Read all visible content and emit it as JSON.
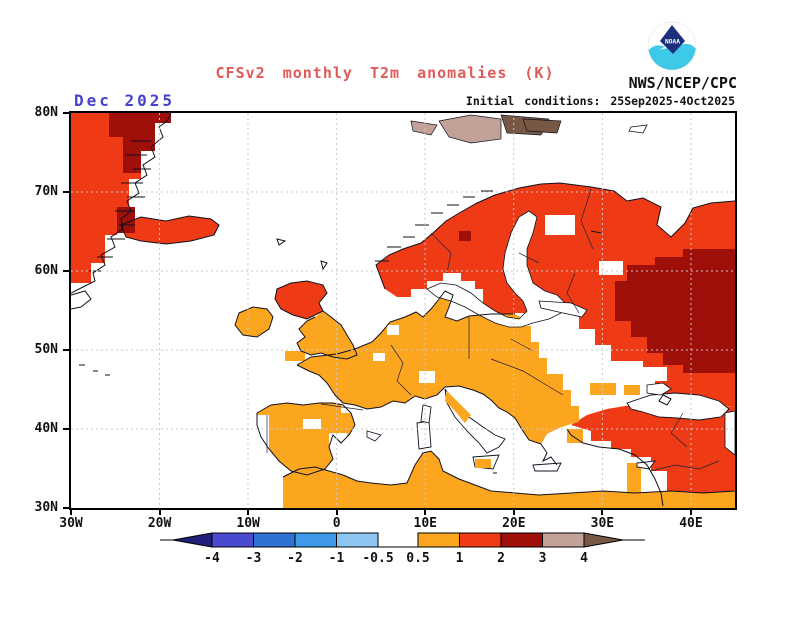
{
  "header": {
    "title": "CFSv2 monthly T2m anomalies (K)",
    "org": "NWS/NCEP/CPC",
    "init_conditions": "Initial conditions: 25Sep2025-4Oct2025",
    "date_label": "Dec 2025",
    "logo_text": "NOAA"
  },
  "colors": {
    "title": "#e05a5a",
    "date_label": "#4343cf",
    "noaa_navy": "#1b2f7e",
    "noaa_cyan": "#3fc9e9",
    "gridline": "#c8c8c8",
    "coastline": "#10101f"
  },
  "map": {
    "lat_ticks": [
      "80N",
      "70N",
      "60N",
      "50N",
      "40N",
      "30N"
    ],
    "lon_ticks": [
      "30W",
      "20W",
      "10W",
      "0",
      "10E",
      "20E",
      "30E",
      "40E"
    ]
  },
  "legend": {
    "tick_labels": [
      "-4",
      "-3",
      "-2",
      "-1",
      "-0.5",
      "0.5",
      "1",
      "2",
      "3",
      "4"
    ],
    "bins": [
      {
        "id": "lt4",
        "range": "< -4",
        "color": "#20207c",
        "shape": "arrow-left"
      },
      {
        "id": "n4",
        "range": "-4 to -3",
        "color": "#4a4ad0"
      },
      {
        "id": "n3",
        "range": "-3 to -2",
        "color": "#2e72d2"
      },
      {
        "id": "n2",
        "range": "-2 to -1",
        "color": "#3e9ae8"
      },
      {
        "id": "n1",
        "range": "-1 to -0.5",
        "color": "#8cc6f0"
      },
      {
        "id": "zero",
        "range": "-0.5 to 0.5",
        "color": "#ffffff"
      },
      {
        "id": "p05",
        "range": "0.5 to 1",
        "color": "#fca51f"
      },
      {
        "id": "p1",
        "range": "1 to 2",
        "color": "#ee3b16"
      },
      {
        "id": "p2",
        "range": "2 to 3",
        "color": "#9e1009"
      },
      {
        "id": "p3",
        "range": "3 to 4",
        "color": "#c2a198"
      },
      {
        "id": "gt4",
        "range": "> 4",
        "color": "#785844",
        "shape": "arrow-right"
      }
    ]
  },
  "chart_data": {
    "type": "heatmap",
    "title": "CFSv2 monthly T2m anomalies (K)",
    "period": "Dec 2025",
    "units": "K",
    "domain": {
      "lon": [
        "30W",
        "45E"
      ],
      "lat": [
        "30N",
        "80N"
      ]
    },
    "scale_breaks": [
      -4,
      -3,
      -2,
      -1,
      -0.5,
      0.5,
      1,
      2,
      3,
      4
    ],
    "regions": [
      {
        "area": "East Greenland coast",
        "anomaly_k": "+1 to +3"
      },
      {
        "area": "Iceland",
        "anomaly_k": "+1 to +2"
      },
      {
        "area": "Svalbard / Arctic islands",
        "anomaly_k": "+3 to >+4"
      },
      {
        "area": "Scandinavia, Finland, Baltics, NW Russia",
        "anomaly_k": "+1 to +2"
      },
      {
        "area": "Western Russia (~40E, 50-60N)",
        "anomaly_k": "+2 to +3"
      },
      {
        "area": "Scotland",
        "anomaly_k": "+1 to +2"
      },
      {
        "area": "Ireland, England, W & Central Europe, Iberia, Balkans, N Africa coast",
        "anomaly_k": "+0.5 to +1"
      },
      {
        "area": "Turkey, Caucasus, Middle East",
        "anomaly_k": "+1 to +2"
      },
      {
        "area": "Atlantic, Mediterranean, Black Sea, Baltic Sea (unshaded)",
        "anomaly_k": "-0.5 to +0.5"
      }
    ]
  }
}
